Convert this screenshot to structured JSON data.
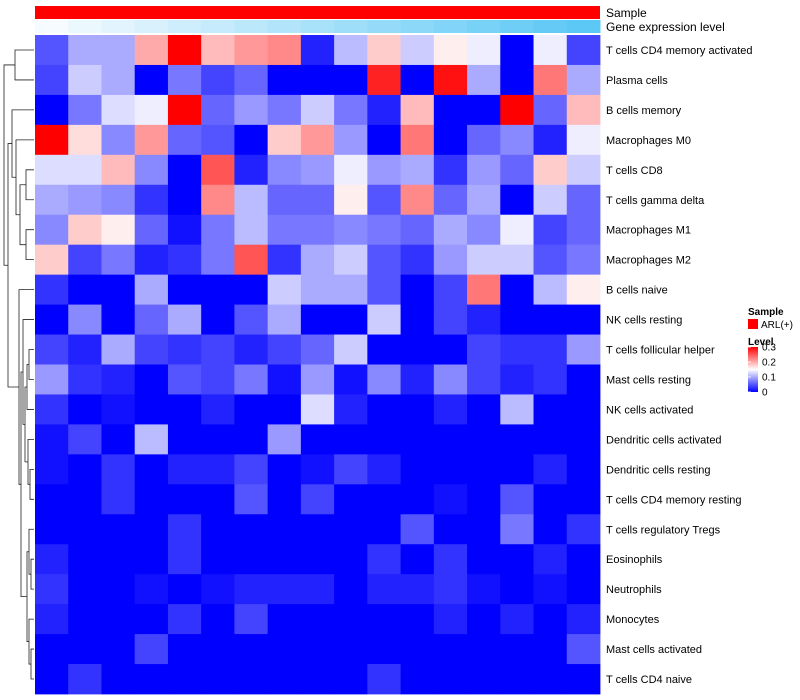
{
  "chart_data": {
    "type": "heatmap",
    "title": "",
    "annotations": [
      {
        "name": "Sample",
        "color": "#ff0000"
      },
      {
        "name": "Gene expression level",
        "colors_low_to_high": [
          "#f5fbff",
          "#5bc8f5"
        ]
      }
    ],
    "legend": {
      "position": "right",
      "sample_title": "Sample",
      "sample_entries": [
        {
          "label": "ARL(+)",
          "color": "#ff0000"
        }
      ],
      "level_title": "Level",
      "level_ticks": [
        0.3,
        0.2,
        0.1,
        0
      ],
      "level_tick_labels": [
        "0.3",
        "0.2",
        "0.1",
        "0"
      ],
      "scale_colors": {
        "low": "#0000ff",
        "mid": "#ffffff",
        "high": "#ff0000"
      },
      "range": [
        0,
        0.3
      ]
    },
    "rows": [
      "T cells CD4 memory activated",
      "Plasma cells",
      "B cells memory",
      "Macrophages M0",
      "T cells CD8",
      "T cells gamma delta",
      "Macrophages M1",
      "Macrophages M2",
      "B cells naive",
      "NK cells resting",
      "T cells follicular helper",
      "Mast cells resting",
      "NK cells activated",
      "Dendritic cells activated",
      "Dendritic cells resting",
      "T cells CD4 memory resting",
      "T cells regulatory  Tregs",
      "Eosinophils",
      "Neutrophils",
      "Monocytes",
      "Mast cells activated",
      "T cells CD4 naive"
    ],
    "values": [
      [
        0.05,
        0.1,
        0.1,
        0.2,
        0.3,
        0.19,
        0.21,
        0.22,
        0.02,
        0.11,
        0.18,
        0.12,
        0.16,
        0.14,
        0.0,
        0.14,
        0.04
      ],
      [
        0.04,
        0.12,
        0.1,
        0.0,
        0.07,
        0.04,
        0.06,
        0.0,
        0.0,
        0.0,
        0.28,
        0.0,
        0.29,
        0.1,
        0.0,
        0.23,
        0.1
      ],
      [
        0.0,
        0.07,
        0.13,
        0.14,
        0.3,
        0.06,
        0.09,
        0.07,
        0.12,
        0.07,
        0.02,
        0.19,
        0.0,
        0.0,
        0.3,
        0.06,
        0.19
      ],
      [
        0.3,
        0.17,
        0.08,
        0.21,
        0.06,
        0.05,
        0.0,
        0.18,
        0.21,
        0.09,
        0.0,
        0.23,
        0.0,
        0.06,
        0.08,
        0.02,
        0.14
      ],
      [
        0.13,
        0.13,
        0.19,
        0.08,
        0.0,
        0.25,
        0.02,
        0.08,
        0.09,
        0.14,
        0.09,
        0.1,
        0.03,
        0.09,
        0.06,
        0.18,
        0.12
      ],
      [
        0.1,
        0.09,
        0.08,
        0.03,
        0.0,
        0.22,
        0.11,
        0.06,
        0.06,
        0.16,
        0.05,
        0.22,
        0.06,
        0.1,
        0.0,
        0.12,
        0.06
      ],
      [
        0.08,
        0.18,
        0.16,
        0.06,
        0.01,
        0.07,
        0.11,
        0.07,
        0.07,
        0.08,
        0.07,
        0.06,
        0.1,
        0.08,
        0.14,
        0.04,
        0.06
      ],
      [
        0.18,
        0.04,
        0.07,
        0.02,
        0.03,
        0.07,
        0.25,
        0.03,
        0.1,
        0.12,
        0.05,
        0.03,
        0.09,
        0.12,
        0.12,
        0.05,
        0.07
      ],
      [
        0.03,
        0.0,
        0.0,
        0.1,
        0.0,
        0.0,
        0.0,
        0.12,
        0.1,
        0.1,
        0.05,
        0.0,
        0.04,
        0.23,
        0.0,
        0.11,
        0.16
      ],
      [
        0.0,
        0.08,
        0.0,
        0.06,
        0.1,
        0.0,
        0.05,
        0.1,
        0.0,
        0.0,
        0.12,
        0.0,
        0.04,
        0.02,
        0.0,
        0.0,
        0.0
      ],
      [
        0.04,
        0.02,
        0.1,
        0.04,
        0.03,
        0.04,
        0.02,
        0.04,
        0.06,
        0.12,
        0.0,
        0.0,
        0.0,
        0.04,
        0.03,
        0.03,
        0.09
      ],
      [
        0.09,
        0.03,
        0.02,
        0.0,
        0.05,
        0.04,
        0.07,
        0.01,
        0.09,
        0.01,
        0.08,
        0.02,
        0.08,
        0.04,
        0.02,
        0.03,
        0.0
      ],
      [
        0.03,
        0.0,
        0.01,
        0.0,
        0.0,
        0.02,
        0.0,
        0.0,
        0.13,
        0.02,
        0.0,
        0.0,
        0.02,
        0.0,
        0.11,
        0.0,
        0.0
      ],
      [
        0.01,
        0.04,
        0.0,
        0.11,
        0.0,
        0.0,
        0.0,
        0.09,
        0.0,
        0.0,
        0.0,
        0.0,
        0.0,
        0.0,
        0.0,
        0.0,
        0.0
      ],
      [
        0.01,
        0.0,
        0.03,
        0.0,
        0.02,
        0.02,
        0.04,
        0.0,
        0.01,
        0.04,
        0.02,
        0.0,
        0.0,
        0.0,
        0.0,
        0.02,
        0.0
      ],
      [
        0.0,
        0.0,
        0.03,
        0.0,
        0.0,
        0.0,
        0.05,
        0.0,
        0.04,
        0.0,
        0.0,
        0.0,
        0.01,
        0.0,
        0.05,
        0.0,
        0.0
      ],
      [
        0.0,
        0.0,
        0.0,
        0.0,
        0.03,
        0.0,
        0.0,
        0.0,
        0.0,
        0.0,
        0.0,
        0.05,
        0.0,
        0.0,
        0.07,
        0.0,
        0.03
      ],
      [
        0.02,
        0.0,
        0.0,
        0.0,
        0.03,
        0.0,
        0.0,
        0.0,
        0.0,
        0.0,
        0.03,
        0.0,
        0.03,
        0.0,
        0.0,
        0.02,
        0.0
      ],
      [
        0.03,
        0.0,
        0.0,
        0.01,
        0.0,
        0.01,
        0.02,
        0.02,
        0.02,
        0.0,
        0.02,
        0.02,
        0.03,
        0.01,
        0.0,
        0.01,
        0.0
      ],
      [
        0.02,
        0.0,
        0.0,
        0.0,
        0.03,
        0.0,
        0.04,
        0.0,
        0.0,
        0.0,
        0.0,
        0.0,
        0.02,
        0.0,
        0.02,
        0.0,
        0.02
      ],
      [
        0.0,
        0.0,
        0.0,
        0.04,
        0.0,
        0.0,
        0.0,
        0.0,
        0.0,
        0.0,
        0.0,
        0.0,
        0.0,
        0.0,
        0.0,
        0.0,
        0.05
      ],
      [
        0.0,
        0.03,
        0.0,
        0.0,
        0.0,
        0.0,
        0.0,
        0.0,
        0.0,
        0.0,
        0.03,
        0.0,
        0.0,
        0.0,
        0.0,
        0.0,
        0.0
      ]
    ]
  }
}
